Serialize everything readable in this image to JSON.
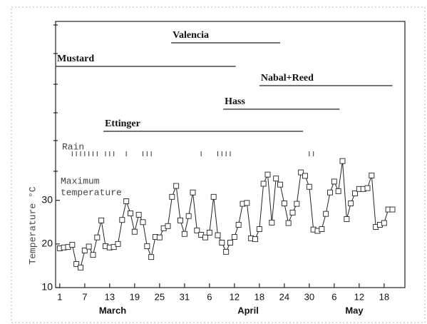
{
  "chart_data": {
    "type": "line",
    "y_label": "Temperature °C",
    "rain_label": "Rain",
    "temp_label": [
      "Maximum",
      "temperature"
    ],
    "months": [
      "March",
      "April",
      "May"
    ],
    "xlim": [
      0,
      84
    ],
    "xticks": [
      {
        "value": 1,
        "label": "1"
      },
      {
        "value": 7,
        "label": "7"
      },
      {
        "value": 13,
        "label": "13"
      },
      {
        "value": 19,
        "label": "19"
      },
      {
        "value": 25,
        "label": "25"
      },
      {
        "value": 31,
        "label": "31"
      },
      {
        "value": 37,
        "label": "6"
      },
      {
        "value": 43,
        "label": "12"
      },
      {
        "value": 49,
        "label": "18"
      },
      {
        "value": 55,
        "label": "24"
      },
      {
        "value": 61,
        "label": "30"
      },
      {
        "value": 67,
        "label": "6"
      },
      {
        "value": 73,
        "label": "12"
      },
      {
        "value": 79,
        "label": "18"
      }
    ],
    "ylim": [
      10,
      71
    ],
    "yticks": [
      10,
      20,
      30
    ],
    "series": [
      {
        "name": "Maximum temperature",
        "color": "#222",
        "x": [
          1,
          2,
          3,
          4,
          5,
          6,
          7,
          8,
          9,
          10,
          11,
          12,
          13,
          14,
          15,
          16,
          17,
          18,
          19,
          20,
          21,
          22,
          23,
          24,
          25,
          26,
          27,
          28,
          29,
          30,
          31,
          32,
          33,
          34,
          35,
          36,
          37,
          38,
          39,
          40,
          41,
          42,
          43,
          44,
          45,
          46,
          47,
          48,
          49,
          50,
          51,
          52,
          53,
          54,
          55,
          56,
          57,
          58,
          59,
          60,
          61,
          62,
          63,
          64,
          65,
          66,
          67,
          68,
          69,
          70,
          71,
          72,
          73,
          74,
          75,
          76,
          77,
          78,
          79,
          80,
          81
        ],
        "values": [
          19,
          19.2,
          19.3,
          19.8,
          15.4,
          14.6,
          18.5,
          19.4,
          17.5,
          21.5,
          25.4,
          19.5,
          19.2,
          19.3,
          20,
          25.5,
          29.8,
          27,
          22.8,
          26.7,
          25,
          19.5,
          17,
          21.6,
          21.5,
          23.6,
          24.1,
          30.8,
          33.3,
          25.4,
          22.3,
          26.4,
          31.8,
          23.1,
          22.1,
          21.5,
          22.6,
          30.8,
          22,
          20.3,
          18.2,
          20.3,
          21.6,
          24.4,
          29.2,
          29.4,
          21.3,
          21.1,
          23.4,
          33.8,
          35.9,
          24.9,
          35,
          33.6,
          29.3,
          24.8,
          27.2,
          29.2,
          36.4,
          35.6,
          33.1,
          23.3,
          23,
          23.4,
          26.9,
          31.8,
          34.3,
          32.1,
          39,
          25.7,
          29.3,
          31.6,
          32.6,
          32.6,
          32.8,
          35.7,
          23.9,
          24.4,
          24.8,
          27.9,
          27.9
        ]
      }
    ],
    "rain_days": [
      4,
      5,
      6,
      7,
      8,
      9,
      10,
      12,
      13,
      14,
      17,
      21,
      22,
      23,
      35,
      39,
      40,
      41,
      42,
      61,
      62
    ],
    "flowering": [
      {
        "name": "Valencia",
        "start": 27.8,
        "end": 54
      },
      {
        "name": "Mustard",
        "start": 0,
        "end": 43.3
      },
      {
        "name": "Nabal+Reed",
        "start": 49,
        "end": 81
      },
      {
        "name": "Hass",
        "start": 40.3,
        "end": 68.3
      },
      {
        "name": "Ettinger",
        "start": 11.5,
        "end": 59.5
      }
    ]
  }
}
